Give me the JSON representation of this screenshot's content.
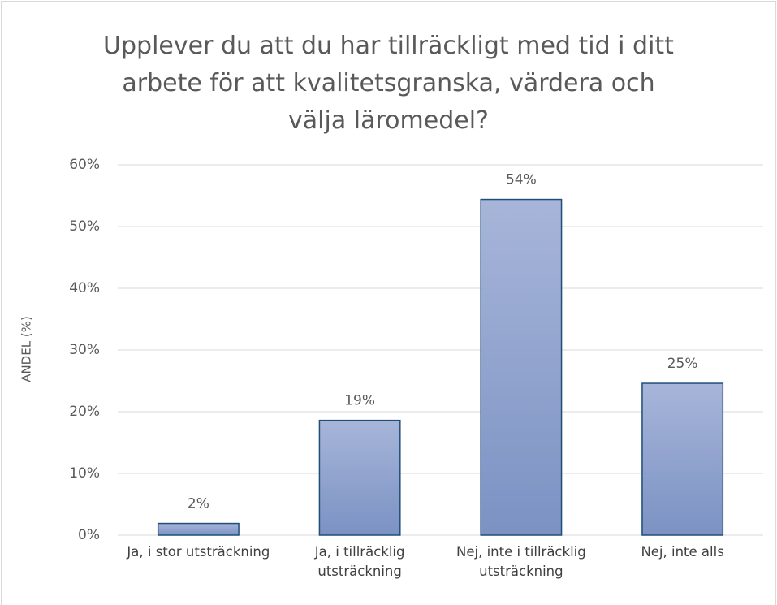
{
  "chart_data": {
    "type": "bar",
    "title": "Upplever du att du har tillräckligt med tid i ditt arbete för att kvalitetsgranska, värdera och välja läromedel?",
    "y_label": "ANDEL (%)",
    "categories": [
      "Ja, i stor utsträckning",
      "Ja, i tillräcklig utsträckning",
      "Nej, inte i tillräcklig utsträckning",
      "Nej, inte alls"
    ],
    "values": [
      1.9,
      18.6,
      54.4,
      24.6
    ],
    "value_labels": [
      "2%",
      "19%",
      "54%",
      "25%"
    ],
    "color": "#8ea1cf",
    "ylim": [
      0,
      60
    ],
    "yticks": [
      {
        "value": 0,
        "label": "0%"
      },
      {
        "value": 10,
        "label": "10%"
      },
      {
        "value": 20,
        "label": "20%"
      },
      {
        "value": 30,
        "label": "30%"
      },
      {
        "value": 40,
        "label": "40%"
      },
      {
        "value": 50,
        "label": "50%"
      },
      {
        "value": 60,
        "label": "60%"
      }
    ],
    "grid": true
  }
}
